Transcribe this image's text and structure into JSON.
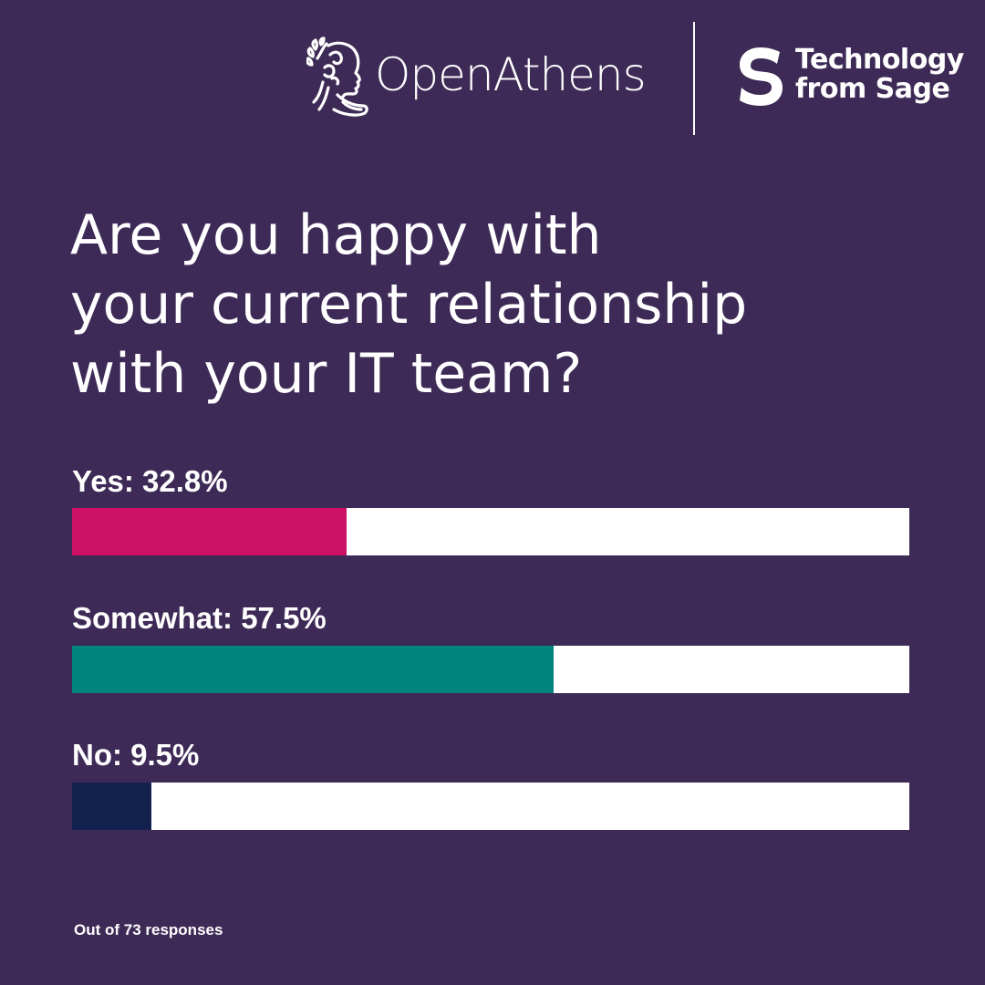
{
  "colors": {
    "background": "#3e2a56",
    "text": "#ffffff",
    "track": "#ffffff",
    "divider": "#ffffff"
  },
  "brand": {
    "openathens": "OpenAthens",
    "sage_line1": "Technology",
    "sage_line2": "from Sage"
  },
  "question": {
    "line1": "Are you happy with",
    "line2": "your current relationship",
    "line3": "with your IT team?"
  },
  "chart_data": {
    "type": "bar",
    "orientation": "horizontal",
    "categories": [
      "Yes",
      "Somewhat",
      "No"
    ],
    "labels": [
      "Yes: 32.8%",
      "Somewhat: 57.5%",
      "No: 9.5%"
    ],
    "values": [
      32.8,
      57.5,
      9.5
    ],
    "unit": "%",
    "colors": [
      "#cc1166",
      "#00857c",
      "#13214f"
    ],
    "xlim": [
      0,
      100
    ],
    "grid": false,
    "legend": "none"
  },
  "footnote": "Out of 73 responses"
}
